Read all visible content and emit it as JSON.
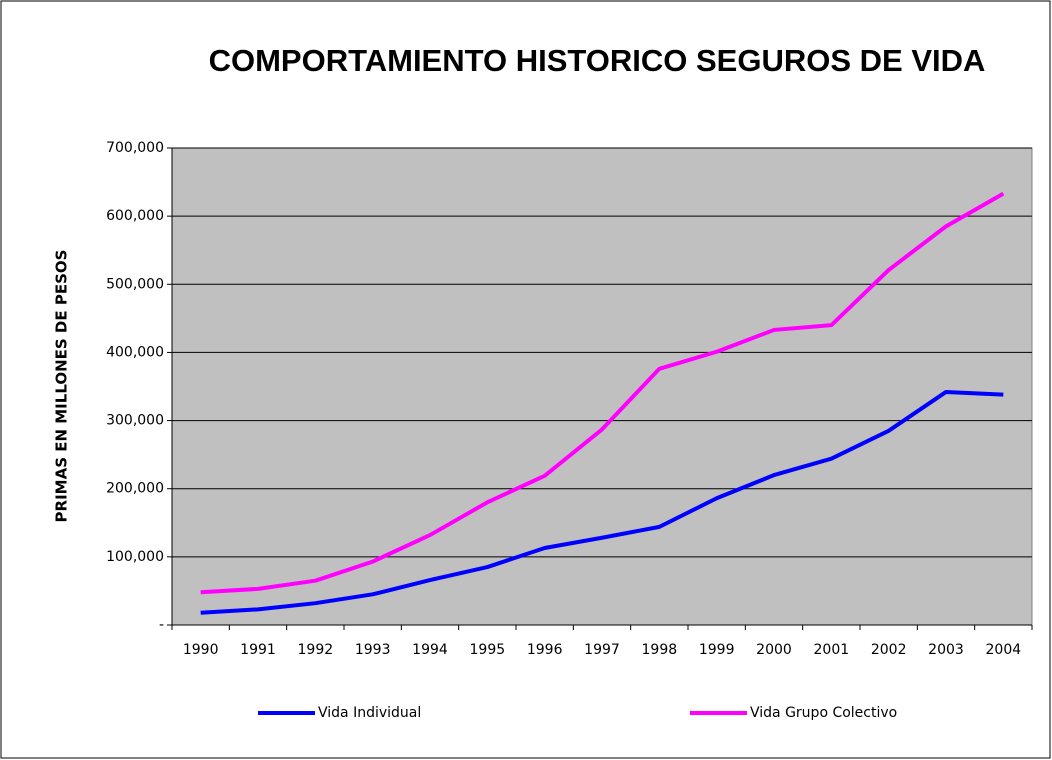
{
  "chart_data": {
    "type": "line",
    "title": "COMPORTAMIENTO HISTORICO SEGUROS DE VIDA",
    "y_label": "PRIMAS EN MILLONES DE PESOS",
    "categories": [
      "1990",
      "1991",
      "1992",
      "1993",
      "1994",
      "1995",
      "1996",
      "1997",
      "1998",
      "1999",
      "2000",
      "2001",
      "2002",
      "2003",
      "2004"
    ],
    "series": [
      {
        "name": "Vida Individual",
        "color": "#0000ff",
        "values": [
          18000,
          23000,
          32000,
          45000,
          66000,
          85000,
          113000,
          128000,
          144000,
          186000,
          220000,
          244000,
          285000,
          342000,
          338000
        ]
      },
      {
        "name": "Vida Grupo Colectivo",
        "color": "#ff00ff",
        "values": [
          48000,
          53000,
          65000,
          93000,
          132000,
          180000,
          219000,
          287000,
          376000,
          401000,
          433000,
          440000,
          521000,
          585000,
          633000
        ]
      }
    ],
    "ylim": [
      0,
      700000
    ],
    "yticks": [
      {
        "value": 0,
        "label": "-"
      },
      {
        "value": 100000,
        "label": "100,000"
      },
      {
        "value": 200000,
        "label": "200,000"
      },
      {
        "value": 300000,
        "label": "300,000"
      },
      {
        "value": 400000,
        "label": "400,000"
      },
      {
        "value": 500000,
        "label": "500,000"
      },
      {
        "value": 600000,
        "label": "600,000"
      },
      {
        "value": 700000,
        "label": "700,000"
      }
    ],
    "grid": true,
    "legend": "bottom",
    "plot_background": "#c0c0c0"
  }
}
